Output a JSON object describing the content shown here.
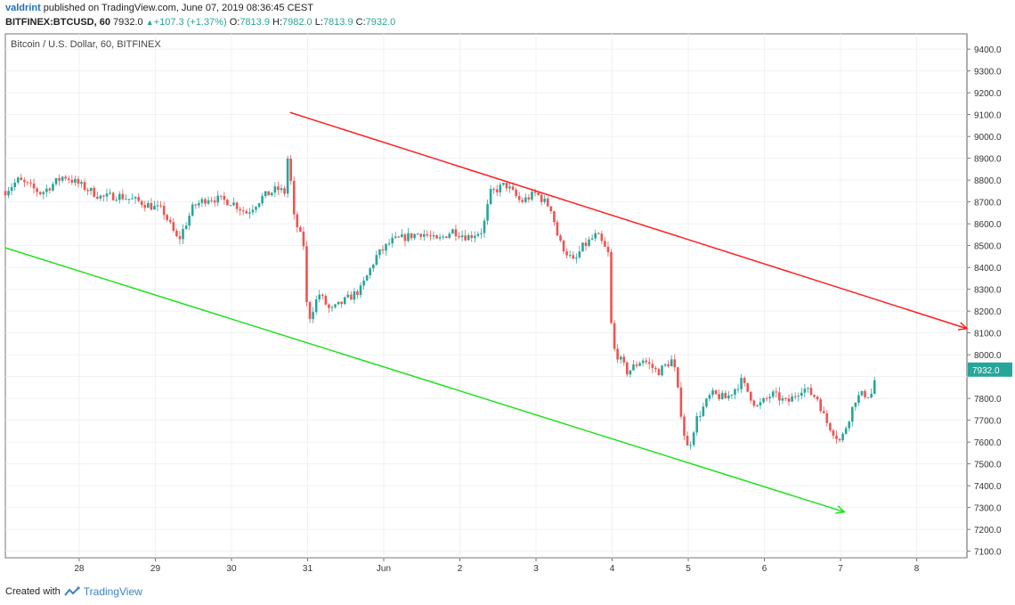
{
  "header": {
    "user": "valdrint",
    "published": "published on TradingView.com, June 07, 2019 08:36:45 CEST",
    "symbol": "BITFINEX:BTCUSD, 60",
    "last": "7932.0",
    "change": "+107.3 (+1.37%)",
    "o_label": "O:",
    "o_val": "7813.9",
    "h_label": "H:",
    "h_val": "7982.0",
    "l_label": "L:",
    "l_val": "7813.9",
    "c_label": "C:",
    "c_val": "7932.0"
  },
  "chart_title": "Bitcoin / U.S. Dollar, 60, BITFINEX",
  "footer": {
    "created_with": "Created with",
    "brand": "TradingView"
  },
  "colors": {
    "up": "#26a69a",
    "down": "#ef5350",
    "upper_channel": "#ff1e1e",
    "lower_channel": "#22e01e",
    "grid": "#eef1f5",
    "price_tag": "#26a69a"
  },
  "chart_data": {
    "type": "candlestick",
    "title": "Bitcoin / U.S. Dollar, 60, BITFINEX",
    "x_ticks": [
      {
        "label": "28",
        "day": 1
      },
      {
        "label": "29",
        "day": 2
      },
      {
        "label": "30",
        "day": 3
      },
      {
        "label": "31",
        "day": 4
      },
      {
        "label": "Jun",
        "day": 5
      },
      {
        "label": "2",
        "day": 6
      },
      {
        "label": "3",
        "day": 7
      },
      {
        "label": "4",
        "day": 8
      },
      {
        "label": "5",
        "day": 9
      },
      {
        "label": "6",
        "day": 10
      },
      {
        "label": "7",
        "day": 11
      },
      {
        "label": "8",
        "day": 12
      }
    ],
    "x_range": [
      0.03,
      12.66
    ],
    "y_ticks": [
      7100,
      7200,
      7300,
      7400,
      7500,
      7600,
      7700,
      7800,
      7900,
      8000,
      8100,
      8200,
      8300,
      8400,
      8500,
      8600,
      8700,
      8800,
      8900,
      9000,
      9100,
      9200,
      9300,
      9400
    ],
    "y_tick_labels": [
      "7100.0",
      "7200.0",
      "7300.0",
      "7400.0",
      "7500.0",
      "7600.0",
      "7700.0",
      "7800.0",
      "7900.0",
      "8000.0",
      "8100.0",
      "8200.0",
      "8300.0",
      "8400.0",
      "8500.0",
      "8600.0",
      "8700.0",
      "8800.0",
      "8900.0",
      "9000.0",
      "9100.0",
      "9200.0",
      "9300.0",
      "9400.0"
    ],
    "ylim": [
      7070,
      9470
    ],
    "last_price": 7932.0,
    "last_price_label": "7932.0",
    "price_path": [
      [
        0.03,
        8750
      ],
      [
        0.2,
        8800
      ],
      [
        0.5,
        8740
      ],
      [
        0.8,
        8820
      ],
      [
        1.0,
        8780
      ],
      [
        1.3,
        8720
      ],
      [
        1.5,
        8730
      ],
      [
        1.8,
        8700
      ],
      [
        2.1,
        8660
      ],
      [
        2.3,
        8520
      ],
      [
        2.5,
        8680
      ],
      [
        2.7,
        8720
      ],
      [
        3.0,
        8700
      ],
      [
        3.2,
        8650
      ],
      [
        3.4,
        8720
      ],
      [
        3.6,
        8760
      ],
      [
        3.72,
        8740
      ],
      [
        3.75,
        9000
      ],
      [
        3.8,
        8650
      ],
      [
        3.95,
        8500
      ],
      [
        4.0,
        8150
      ],
      [
        4.15,
        8280
      ],
      [
        4.3,
        8200
      ],
      [
        4.5,
        8250
      ],
      [
        4.7,
        8300
      ],
      [
        4.9,
        8450
      ],
      [
        5.1,
        8520
      ],
      [
        5.3,
        8540
      ],
      [
        5.5,
        8560
      ],
      [
        5.7,
        8520
      ],
      [
        5.9,
        8570
      ],
      [
        6.1,
        8540
      ],
      [
        6.3,
        8570
      ],
      [
        6.4,
        8740
      ],
      [
        6.6,
        8780
      ],
      [
        6.8,
        8700
      ],
      [
        7.0,
        8740
      ],
      [
        7.2,
        8670
      ],
      [
        7.3,
        8520
      ],
      [
        7.5,
        8420
      ],
      [
        7.6,
        8490
      ],
      [
        7.8,
        8550
      ],
      [
        7.95,
        8460
      ],
      [
        8.0,
        8040
      ],
      [
        8.2,
        7920
      ],
      [
        8.4,
        7980
      ],
      [
        8.6,
        7920
      ],
      [
        8.8,
        7980
      ],
      [
        8.95,
        7630
      ],
      [
        9.0,
        7560
      ],
      [
        9.1,
        7700
      ],
      [
        9.3,
        7820
      ],
      [
        9.5,
        7800
      ],
      [
        9.7,
        7880
      ],
      [
        9.9,
        7760
      ],
      [
        10.1,
        7820
      ],
      [
        10.3,
        7780
      ],
      [
        10.5,
        7850
      ],
      [
        10.7,
        7800
      ],
      [
        10.8,
        7700
      ],
      [
        10.9,
        7650
      ],
      [
        11.0,
        7600
      ],
      [
        11.1,
        7700
      ],
      [
        11.2,
        7800
      ],
      [
        11.3,
        7820
      ],
      [
        11.4,
        7813.9
      ],
      [
        11.48,
        7932
      ]
    ],
    "lines": [
      {
        "name": "",
        "color": "#ff1e1e",
        "points": [
          [
            3.77,
            9110
          ],
          [
            12.66,
            8120
          ]
        ],
        "arrow": true
      },
      {
        "name": "",
        "color": "#22e01e",
        "points": [
          [
            0.03,
            8490
          ],
          [
            11.05,
            7280
          ]
        ],
        "arrow": true
      }
    ]
  }
}
